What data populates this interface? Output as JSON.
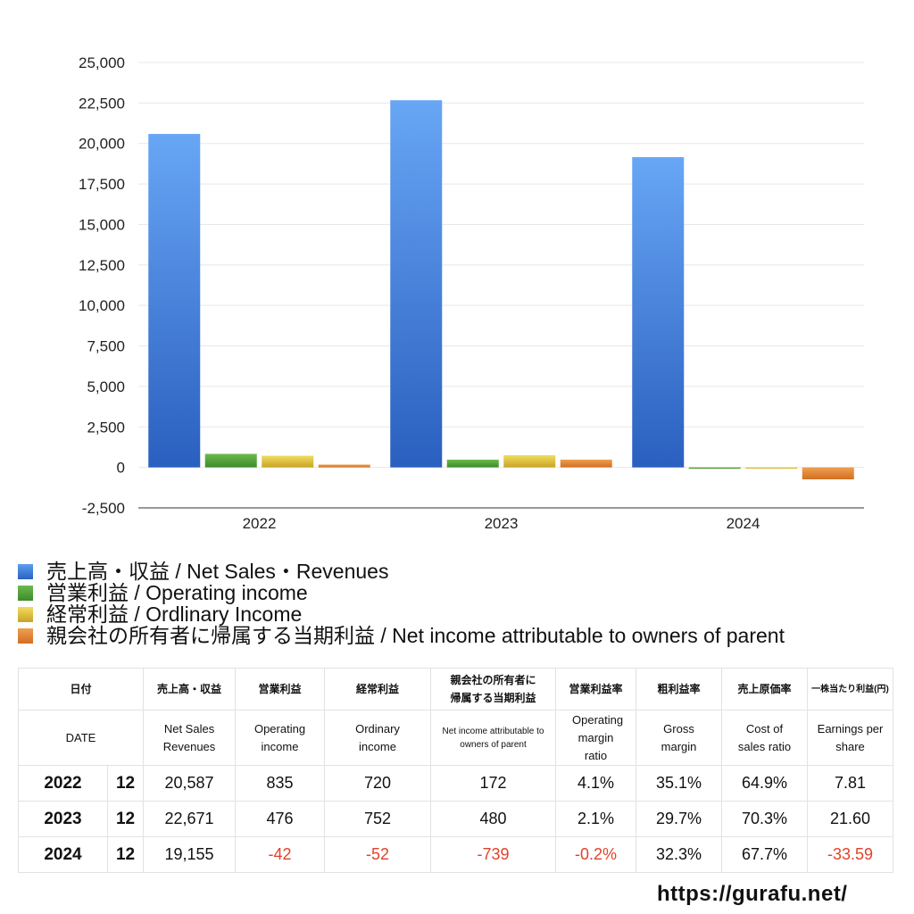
{
  "chart_data": {
    "type": "bar",
    "categories": [
      "2022",
      "2023",
      "2024"
    ],
    "series": [
      {
        "name": "売上高・収益 / Net Sales・Revenues",
        "values": [
          20587,
          22671,
          19155
        ],
        "color": "#3d7fe0"
      },
      {
        "name": "営業利益 / Operating income",
        "values": [
          835,
          476,
          -42
        ],
        "color": "#4f9a3a"
      },
      {
        "name": "経常利益 / Ordlinary Income",
        "values": [
          720,
          752,
          -52
        ],
        "color": "#d9bb2e"
      },
      {
        "name": "親会社の所有者に帰属する当期利益 / Net income attributable to owners of parent",
        "values": [
          172,
          480,
          -739
        ],
        "color": "#dd7c2e"
      }
    ],
    "ylim": [
      -2500,
      25000
    ],
    "yticks": [
      "25,000",
      "22,500",
      "20,000",
      "17,500",
      "15,000",
      "12,500",
      "10,000",
      "7,500",
      "5,000",
      "2,500",
      "0",
      "-2,500"
    ],
    "grid": true,
    "legend": "bottom-left"
  },
  "table": {
    "header_jp": [
      "日付",
      "売上高・収益",
      "営業利益",
      "経常利益",
      "親会社の所有者に帰属する当期利益",
      "営業利益率",
      "粗利益率",
      "売上原価率",
      "一株当たり利益(円)"
    ],
    "header_en": [
      "DATE",
      "Net Sales Revenues",
      "Operating income",
      "Ordinary income",
      "Net income attributable to owners of parent",
      "Operating margin ratio",
      "Gross margin",
      "Cost of sales ratio",
      "Earnings per share"
    ],
    "rows": [
      {
        "year": "2022",
        "month": "12",
        "cells": [
          "20,587",
          "835",
          "720",
          "172",
          "4.1%",
          "35.1%",
          "64.9%",
          "7.81"
        ]
      },
      {
        "year": "2023",
        "month": "12",
        "cells": [
          "22,671",
          "476",
          "752",
          "480",
          "2.1%",
          "29.7%",
          "70.3%",
          "21.60"
        ]
      },
      {
        "year": "2024",
        "month": "12",
        "cells": [
          "19,155",
          "-42",
          "-52",
          "-739",
          "-0.2%",
          "32.3%",
          "67.7%",
          "-33.59"
        ]
      }
    ]
  },
  "footer": {
    "url": "https://gurafu.net/"
  }
}
